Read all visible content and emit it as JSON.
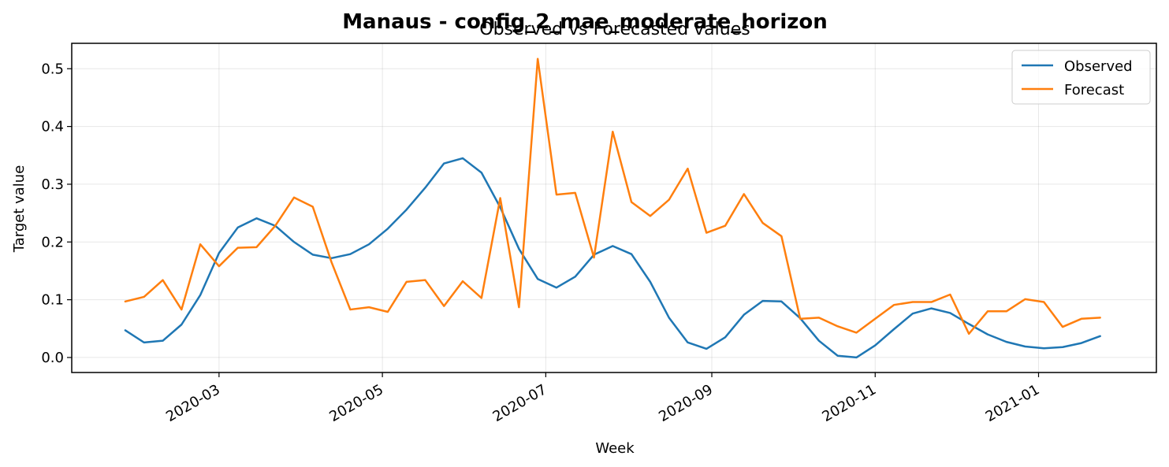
{
  "chart_data": {
    "type": "line",
    "suptitle": "Manaus - config_2_mae_moderate_horizon",
    "title": "Observed vs Forecasted values",
    "xlabel": "Week",
    "ylabel": "Target value",
    "x_ticks": [
      {
        "date": "2020-03-01",
        "label": "2020-03"
      },
      {
        "date": "2020-05-01",
        "label": "2020-05"
      },
      {
        "date": "2020-07-01",
        "label": "2020-07"
      },
      {
        "date": "2020-09-01",
        "label": "2020-09"
      },
      {
        "date": "2020-11-01",
        "label": "2020-11"
      },
      {
        "date": "2021-01-01",
        "label": "2021-01"
      }
    ],
    "y_ticks": [
      {
        "value": 0.0,
        "label": "0.0"
      },
      {
        "value": 0.1,
        "label": "0.1"
      },
      {
        "value": 0.2,
        "label": "0.2"
      },
      {
        "value": 0.3,
        "label": "0.3"
      },
      {
        "value": 0.4,
        "label": "0.4"
      },
      {
        "value": 0.5,
        "label": "0.5"
      }
    ],
    "xlim": [
      "2020-01-06",
      "2021-02-14"
    ],
    "ylim": [
      -0.026,
      0.544
    ],
    "grid": true,
    "legend_position": "top-right",
    "x": [
      "2020-01-26",
      "2020-02-02",
      "2020-02-09",
      "2020-02-16",
      "2020-02-23",
      "2020-03-01",
      "2020-03-08",
      "2020-03-15",
      "2020-03-22",
      "2020-03-29",
      "2020-04-05",
      "2020-04-12",
      "2020-04-19",
      "2020-04-26",
      "2020-05-03",
      "2020-05-10",
      "2020-05-17",
      "2020-05-24",
      "2020-05-31",
      "2020-06-07",
      "2020-06-14",
      "2020-06-21",
      "2020-06-28",
      "2020-07-05",
      "2020-07-12",
      "2020-07-19",
      "2020-07-26",
      "2020-08-02",
      "2020-08-09",
      "2020-08-16",
      "2020-08-23",
      "2020-08-30",
      "2020-09-06",
      "2020-09-13",
      "2020-09-20",
      "2020-09-27",
      "2020-10-04",
      "2020-10-11",
      "2020-10-18",
      "2020-10-25",
      "2020-11-01",
      "2020-11-08",
      "2020-11-15",
      "2020-11-22",
      "2020-11-29",
      "2020-12-06",
      "2020-12-13",
      "2020-12-20",
      "2020-12-27",
      "2021-01-03",
      "2021-01-10",
      "2021-01-17",
      "2021-01-24"
    ],
    "series": [
      {
        "name": "Observed",
        "color": "#1f77b4",
        "values": [
          0.047,
          0.026,
          0.029,
          0.057,
          0.108,
          0.181,
          0.225,
          0.241,
          0.228,
          0.2,
          0.178,
          0.172,
          0.179,
          0.196,
          0.223,
          0.256,
          0.294,
          0.336,
          0.345,
          0.32,
          0.26,
          0.188,
          0.136,
          0.121,
          0.14,
          0.178,
          0.193,
          0.179,
          0.131,
          0.069,
          0.026,
          0.015,
          0.035,
          0.074,
          0.098,
          0.097,
          0.068,
          0.029,
          0.003,
          0.0,
          0.021,
          0.049,
          0.076,
          0.085,
          0.077,
          0.058,
          0.04,
          0.027,
          0.019,
          0.016,
          0.018,
          0.025,
          0.037
        ]
      },
      {
        "name": "Forecast",
        "color": "#ff7f0e",
        "values": [
          0.097,
          0.105,
          0.134,
          0.083,
          0.196,
          0.158,
          0.19,
          0.191,
          0.228,
          0.277,
          0.261,
          0.165,
          0.083,
          0.087,
          0.079,
          0.131,
          0.134,
          0.089,
          0.132,
          0.103,
          0.276,
          0.087,
          0.517,
          0.282,
          0.285,
          0.173,
          0.391,
          0.269,
          0.245,
          0.273,
          0.327,
          0.216,
          0.228,
          0.283,
          0.233,
          0.21,
          0.067,
          0.069,
          0.054,
          0.043,
          0.067,
          0.091,
          0.096,
          0.096,
          0.109,
          0.041,
          0.08,
          0.08,
          0.101,
          0.096,
          0.053,
          0.067,
          0.069
        ]
      }
    ]
  }
}
